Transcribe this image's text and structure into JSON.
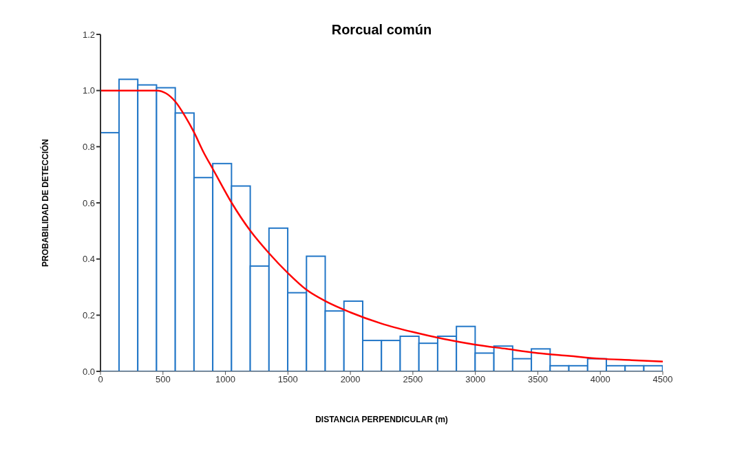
{
  "chart_data": {
    "type": "histogram",
    "title": "Rorcual común",
    "xlabel": "DISTANCIA PERPENDICULAR (m)",
    "ylabel": "PROBABILIDAD DE DETECCIÓN",
    "bins": [
      0,
      150,
      300,
      450,
      600,
      750,
      900,
      1050,
      1200,
      1350,
      1500,
      1650,
      1800,
      1950,
      2100,
      2250,
      2400,
      2550,
      2700,
      2850,
      3000,
      3150,
      3300,
      3450,
      3600,
      3750,
      3900,
      4050,
      4200,
      4350,
      4500
    ],
    "values": [
      0.85,
      1.04,
      1.02,
      1.01,
      0.92,
      0.69,
      0.74,
      0.66,
      0.375,
      0.51,
      0.28,
      0.41,
      0.215,
      0.25,
      0.11,
      0.11,
      0.125,
      0.1,
      0.125,
      0.16,
      0.065,
      0.09,
      0.045,
      0.08,
      0.02,
      0.02,
      0.045,
      0.02,
      0.02,
      0.02
    ],
    "color": "#2176c7",
    "series": [
      {
        "type": "line",
        "color": "#ff0000",
        "x": [
          0,
          150,
          300,
          450,
          525,
          600,
          675,
          750,
          825,
          900,
          1050,
          1200,
          1350,
          1500,
          1650,
          1800,
          2000,
          2250,
          2500,
          2750,
          3000,
          3250,
          3500,
          3750,
          4000,
          4250,
          4500
        ],
        "values": [
          1.0,
          1.0,
          1.0,
          1.0,
          0.99,
          0.96,
          0.91,
          0.85,
          0.78,
          0.72,
          0.6,
          0.5,
          0.42,
          0.35,
          0.29,
          0.25,
          0.21,
          0.17,
          0.14,
          0.115,
          0.095,
          0.08,
          0.065,
          0.055,
          0.045,
          0.04,
          0.035
        ]
      }
    ],
    "xlim": [
      0,
      4500
    ],
    "xticks": [
      0,
      500,
      1000,
      1500,
      2000,
      2500,
      3000,
      3500,
      4000,
      4500
    ],
    "ylim": [
      0,
      1.2
    ],
    "yticks": [
      {
        "value": 0,
        "label": "0.0"
      },
      {
        "value": 0.2,
        "label": "0.2"
      },
      {
        "value": 0.4,
        "label": "0.4"
      },
      {
        "value": 0.6,
        "label": "0.6"
      },
      {
        "value": 0.8,
        "label": "0.8"
      },
      {
        "value": 1.0,
        "label": "1.0"
      },
      {
        "value": 1.2,
        "label": "1.2"
      }
    ],
    "grid": false,
    "legend": false
  }
}
